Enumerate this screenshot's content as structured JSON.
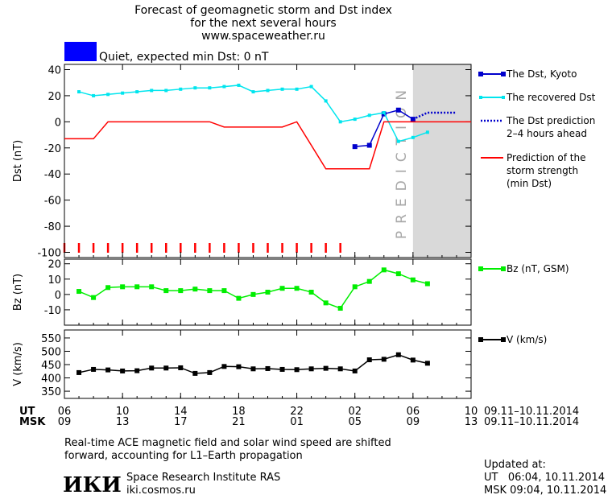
{
  "header": {
    "title": [
      "Forecast of geomagnetic storm and Dst index",
      "for the next several hours",
      "www.spaceweather.ru"
    ],
    "status": "Quiet, expected min Dst: 0 nT",
    "status_color": "#0000ff"
  },
  "chart_data": [
    {
      "type": "line",
      "ylabel": "Dst (nT)",
      "xlim": [
        0,
        28
      ],
      "ylim": [
        -104,
        44
      ],
      "yticks": [
        40,
        20,
        0,
        -20,
        -40,
        -60,
        -80,
        -100
      ],
      "shade": {
        "from": 24,
        "label": "PREDICTION",
        "color": "#d9d9d9"
      },
      "series": [
        {
          "name": "The Dst, Kyoto",
          "color": "#0000cc",
          "marker": "square",
          "x": [
            20,
            21,
            22,
            23,
            24
          ],
          "values": [
            -19,
            -18,
            6,
            9,
            2
          ]
        },
        {
          "name": "The recovered Dst",
          "color": "#00e5ee",
          "marker": "square",
          "x": [
            1,
            2,
            3,
            4,
            5,
            6,
            7,
            8,
            9,
            10,
            11,
            12,
            13,
            14,
            15,
            16,
            17,
            18,
            19,
            20,
            21,
            22,
            23,
            24,
            25
          ],
          "values": [
            23,
            20,
            21,
            22,
            23,
            24,
            24,
            25,
            26,
            26,
            27,
            28,
            23,
            24,
            25,
            25,
            27,
            16,
            0,
            2,
            5,
            7,
            -15,
            -12,
            -8
          ]
        },
        {
          "name": "The Dst prediction\n2–4 hours ahead",
          "color": "#0000cc",
          "dash": "dotted",
          "x": [
            24,
            25,
            26,
            27
          ],
          "values": [
            2,
            7,
            7,
            7
          ]
        },
        {
          "name": "Prediction of the\nstorm strength\n(min Dst)",
          "color": "#ff0000",
          "x": [
            0,
            2,
            3,
            10,
            11,
            15,
            16,
            18,
            21,
            22,
            28
          ],
          "values": [
            -13,
            -13,
            0,
            0,
            -4,
            -4,
            0,
            -36,
            -36,
            0,
            0
          ]
        }
      ]
    },
    {
      "type": "line",
      "ylabel": "Bz (nT)",
      "xlim": [
        0,
        28
      ],
      "ylim": [
        -20,
        23
      ],
      "yticks": [
        20,
        10,
        0,
        -10
      ],
      "series": [
        {
          "name": "Bz (nT, GSM)",
          "color": "#00ee00",
          "marker": "square",
          "x": [
            1,
            2,
            3,
            4,
            5,
            6,
            7,
            8,
            9,
            10,
            11,
            12,
            13,
            14,
            15,
            16,
            17,
            18,
            19,
            20,
            21,
            22,
            23,
            24,
            25
          ],
          "values": [
            2,
            -2,
            4.5,
            5,
            5,
            5,
            2.5,
            2.5,
            3.5,
            2.5,
            2.5,
            -2.5,
            0,
            1.5,
            4,
            4,
            1.5,
            -5.5,
            -9,
            5,
            8.5,
            16,
            13.5,
            9.5,
            7
          ]
        }
      ]
    },
    {
      "type": "line",
      "ylabel": "V (km/s)",
      "xlim": [
        0,
        28
      ],
      "ylim": [
        323,
        580
      ],
      "yticks": [
        550,
        500,
        450,
        400,
        350
      ],
      "xticks": [
        {
          "value": 0,
          "label": "06"
        },
        {
          "value": 4,
          "label": "10"
        },
        {
          "value": 8,
          "label": "14"
        },
        {
          "value": 12,
          "label": "18"
        },
        {
          "value": 16,
          "label": "22"
        },
        {
          "value": 20,
          "label": "02"
        },
        {
          "value": 24,
          "label": "06"
        },
        {
          "value": 28,
          "label": "10"
        }
      ],
      "msk_ticks": [
        {
          "value": 0,
          "label": "09"
        },
        {
          "value": 4,
          "label": "13"
        },
        {
          "value": 8,
          "label": "17"
        },
        {
          "value": 12,
          "label": "21"
        },
        {
          "value": 16,
          "label": "01"
        },
        {
          "value": 20,
          "label": "05"
        },
        {
          "value": 24,
          "label": "09"
        },
        {
          "value": 28,
          "label": "13"
        }
      ],
      "ut_label": "UT",
      "msk_label": "MSK",
      "date_range": "09.11–10.11.2014",
      "series": [
        {
          "name": "V (km/s)",
          "color": "#000000",
          "marker": "square",
          "x": [
            1,
            2,
            3,
            4,
            5,
            6,
            7,
            8,
            9,
            10,
            11,
            12,
            13,
            14,
            15,
            16,
            17,
            18,
            19,
            20,
            21,
            22,
            23,
            24,
            25
          ],
          "values": [
            420,
            432,
            430,
            426,
            427,
            437,
            437,
            438,
            417,
            420,
            443,
            442,
            434,
            435,
            432,
            431,
            434,
            436,
            434,
            426,
            468,
            470,
            487,
            467,
            455
          ]
        }
      ]
    }
  ],
  "footer": {
    "note": [
      "Real-time ACE magnetic field and solar wind speed are shifted",
      "forward, accounting for L1–Earth propagation"
    ],
    "logo": "ИКИ",
    "institute": "Space Research Institute RAS",
    "site": "iki.cosmos.ru",
    "updated": [
      "Updated at:",
      "UT   06:04, 10.11.2014",
      "MSK 09:04, 10.11.2014"
    ]
  }
}
